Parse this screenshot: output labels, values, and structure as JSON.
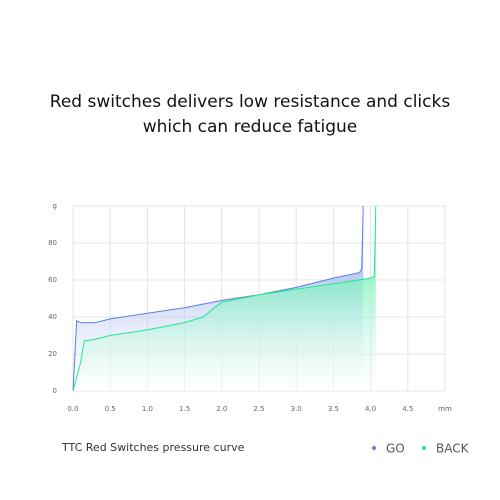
{
  "chart_data": {
    "type": "area",
    "title": "Red switches delivers low resistance and clicks which can reduce fatigue",
    "caption": "TTC Red Switches pressure curve",
    "xlim": [
      0,
      5
    ],
    "ylim": [
      0,
      100
    ],
    "xticks": [
      {
        "value": 0,
        "label": "0.0"
      },
      0.5,
      {
        "value": 1,
        "label": "1.0"
      },
      1.5,
      {
        "value": 2,
        "label": "2.0"
      },
      2.5,
      {
        "value": 3,
        "label": "3.0"
      },
      3.5,
      {
        "value": 4,
        "label": "4.0"
      },
      4.5,
      {
        "value": 5,
        "label": "mm"
      }
    ],
    "yticks": [
      0,
      20,
      40,
      60,
      80,
      {
        "value": 100,
        "label": "g"
      }
    ],
    "grid": true,
    "series": [
      {
        "name": "GO",
        "color": "#5b7fe0",
        "x": [
          0,
          0.05,
          0.1,
          0.3,
          0.5,
          1.0,
          1.5,
          2.0,
          2.5,
          3.0,
          3.5,
          3.85,
          3.88,
          3.9
        ],
        "values": [
          0,
          38,
          37,
          37,
          39,
          42,
          45,
          49,
          52,
          56,
          61,
          64,
          66,
          100
        ]
      },
      {
        "name": "BACK",
        "color": "#22e890",
        "x": [
          0,
          0.1,
          0.15,
          0.3,
          0.5,
          1.0,
          1.5,
          1.75,
          1.9,
          2.0,
          2.5,
          3.0,
          3.5,
          4.0,
          4.05,
          4.07
        ],
        "values": [
          0,
          15,
          27,
          28,
          30,
          33,
          37,
          40,
          45,
          48,
          52,
          55,
          58,
          61,
          62,
          100
        ]
      }
    ]
  }
}
